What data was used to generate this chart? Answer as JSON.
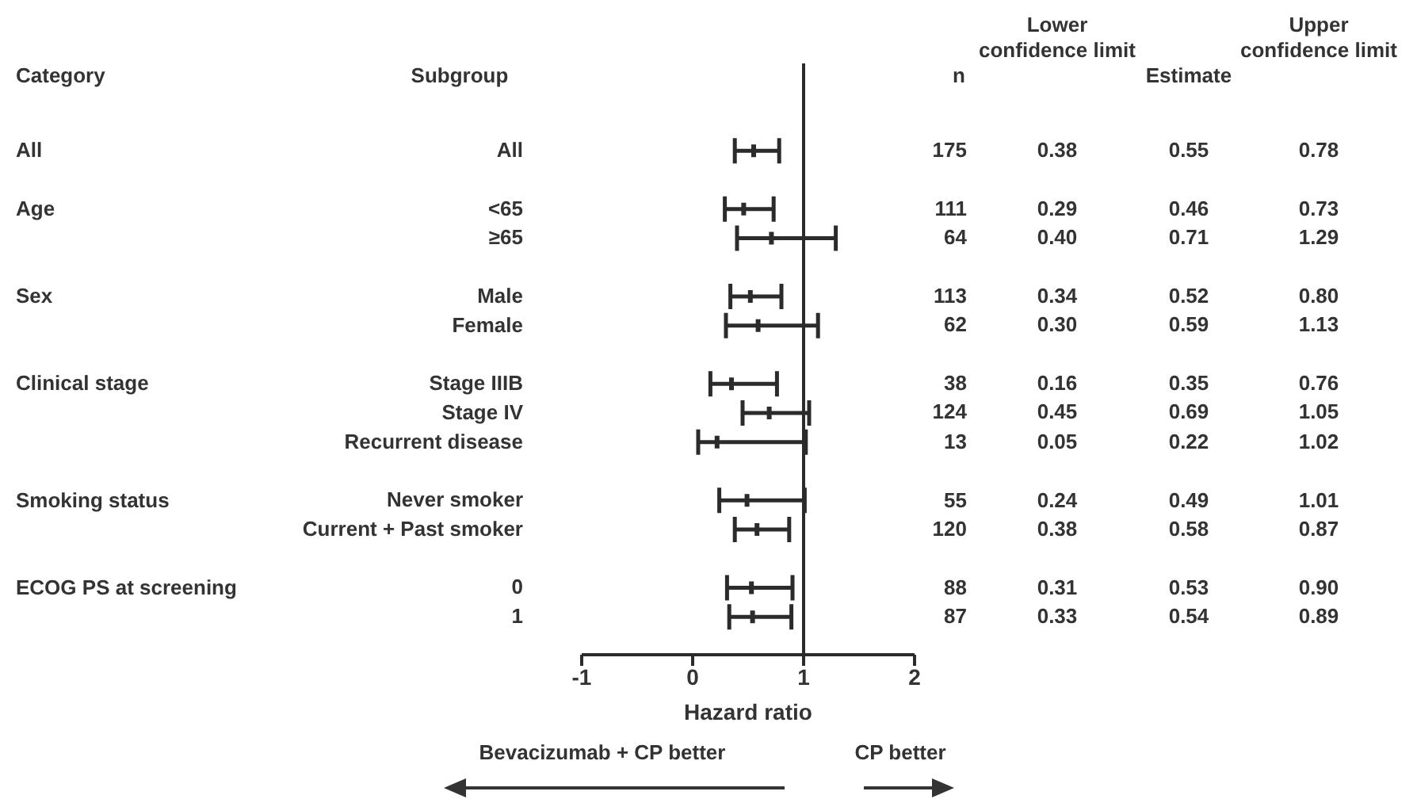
{
  "chart_data": {
    "type": "scatter",
    "orientation": "horizontal",
    "xlabel": "Hazard ratio",
    "categories": [
      "All",
      null,
      "<65",
      "≥65",
      null,
      "Male",
      "Female",
      null,
      "Stage IIIB",
      "Stage IV",
      "Recurrent disease",
      null,
      "Never smoker",
      "Current + Past smoker",
      null,
      "0",
      "1"
    ],
    "series": [
      {
        "color": "#2b2b2b",
        "values": [
          0.55,
          null,
          0.46,
          0.71,
          null,
          0.52,
          0.59,
          null,
          0.35,
          0.69,
          0.22,
          null,
          0.49,
          0.58,
          null,
          0.53,
          0.54
        ],
        "errors": [
          [
            0.38,
            0.78
          ],
          null,
          [
            0.29,
            0.73
          ],
          [
            0.4,
            1.29
          ],
          null,
          [
            0.34,
            0.8
          ],
          [
            0.3,
            1.13
          ],
          null,
          [
            0.16,
            0.76
          ],
          [
            0.45,
            1.05
          ],
          [
            0.05,
            1.02
          ],
          null,
          [
            0.24,
            1.01
          ],
          [
            0.38,
            0.87
          ],
          null,
          [
            0.31,
            0.9
          ],
          [
            0.33,
            0.89
          ]
        ],
        "value_labels": [
          "0.55",
          null,
          "0.46",
          "0.71",
          null,
          "0.52",
          "0.59",
          null,
          "0.35",
          "0.69",
          "0.22",
          null,
          "0.49",
          "0.58",
          null,
          "0.53",
          "0.54"
        ]
      }
    ],
    "xlim": [
      -1,
      2
    ],
    "xticks": [
      -1,
      0,
      1,
      2
    ],
    "ref_lines": [
      {
        "axis": "x",
        "value": 1,
        "color": "#2b2b2b"
      }
    ],
    "annotations": [
      "Category",
      "Subgroup",
      "n",
      "Lower confidence limit",
      "Estimate",
      "Upper confidence limit",
      "Bevacizumab + CP better",
      "CP better",
      "All",
      "175",
      "0.38",
      "0.78",
      "Age",
      "111",
      "0.29",
      "0.73",
      "64",
      "0.40",
      "1.29",
      "Sex",
      "113",
      "0.34",
      "0.80",
      "62",
      "0.30",
      "1.13",
      "Clinical stage",
      "38",
      "0.16",
      "0.76",
      "124",
      "0.45",
      "1.05",
      "13",
      "0.05",
      "1.02",
      "Smoking status",
      "55",
      "0.24",
      "1.01",
      "120",
      "0.38",
      "0.87",
      "ECOG PS at screening",
      "88",
      "0.31",
      "0.90",
      "87",
      "0.33",
      "0.89"
    ]
  }
}
